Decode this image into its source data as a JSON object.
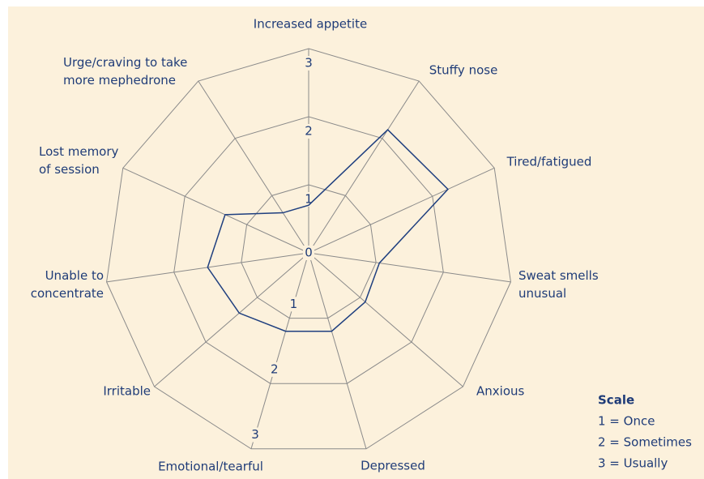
{
  "chart_data": {
    "type": "radar",
    "categories": [
      "Increased appetite",
      "Stuffy nose",
      "Tired/fatigued",
      "Sweat smells\nunusual",
      "Anxious",
      "Depressed",
      "Emotional/tearful",
      "Irritable",
      "Unable to\nconcentrate",
      "Lost memory\nof session",
      "Urge/craving to take\nmore mephedrone"
    ],
    "values": [
      0.7,
      2.15,
      2.25,
      1.05,
      1.1,
      1.2,
      1.2,
      1.35,
      1.5,
      1.35,
      0.7
    ],
    "color": "#1f3f7f",
    "ylim": [
      0,
      3
    ],
    "yticks": [
      0,
      1,
      2,
      3
    ],
    "scale_title": "Scale",
    "scale_items": [
      "1 = Once",
      "2 = Sometimes",
      "3 = Usually"
    ]
  }
}
